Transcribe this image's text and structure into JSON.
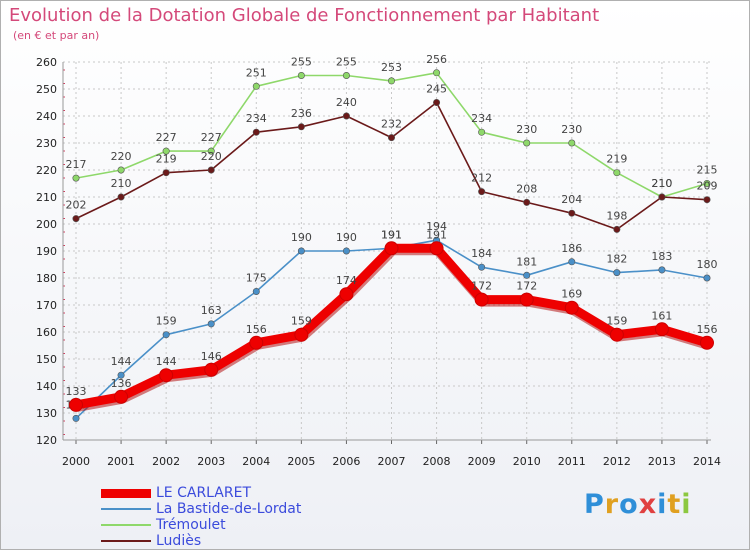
{
  "chart_data": {
    "type": "line",
    "title": "Evolution de la Dotation Globale de Fonctionnement par Habitant",
    "subtitle": "(en € et par an)",
    "x": [
      "2000",
      "2001",
      "2002",
      "2003",
      "2004",
      "2005",
      "2006",
      "2007",
      "2008",
      "2009",
      "2010",
      "2011",
      "2012",
      "2013",
      "2014"
    ],
    "ylim": [
      120,
      260
    ],
    "yticks": [
      120,
      130,
      140,
      150,
      160,
      170,
      180,
      190,
      200,
      210,
      220,
      230,
      240,
      250,
      260
    ],
    "grid": true,
    "legend_position": "bottom-left",
    "series": [
      {
        "name": "LE CARLARET",
        "color": "#ee0000",
        "values": [
          133,
          136,
          144,
          146,
          156,
          159,
          174,
          191,
          191,
          172,
          172,
          169,
          159,
          161,
          156
        ]
      },
      {
        "name": "La Bastide-de-Lordat",
        "color": "#4a90c8",
        "values": [
          128,
          144,
          159,
          163,
          175,
          190,
          190,
          191,
          194,
          184,
          181,
          186,
          182,
          183,
          180
        ]
      },
      {
        "name": "Trémoulet",
        "color": "#8ed86a",
        "values": [
          217,
          220,
          227,
          227,
          251,
          255,
          255,
          253,
          256,
          234,
          230,
          230,
          219,
          210,
          215
        ]
      },
      {
        "name": "Ludiès",
        "color": "#6b1a1a",
        "values": [
          202,
          210,
          219,
          220,
          234,
          236,
          240,
          232,
          245,
          212,
          208,
          204,
          198,
          210,
          209
        ]
      }
    ]
  },
  "logo": {
    "letters": [
      "P",
      "r",
      "o",
      "x",
      "i",
      "t",
      "i"
    ],
    "colors": [
      "#2f8fd8",
      "#e0a020",
      "#2f8fd8",
      "#e04040",
      "#2f8fd8",
      "#e0a020",
      "#8cc840"
    ]
  }
}
